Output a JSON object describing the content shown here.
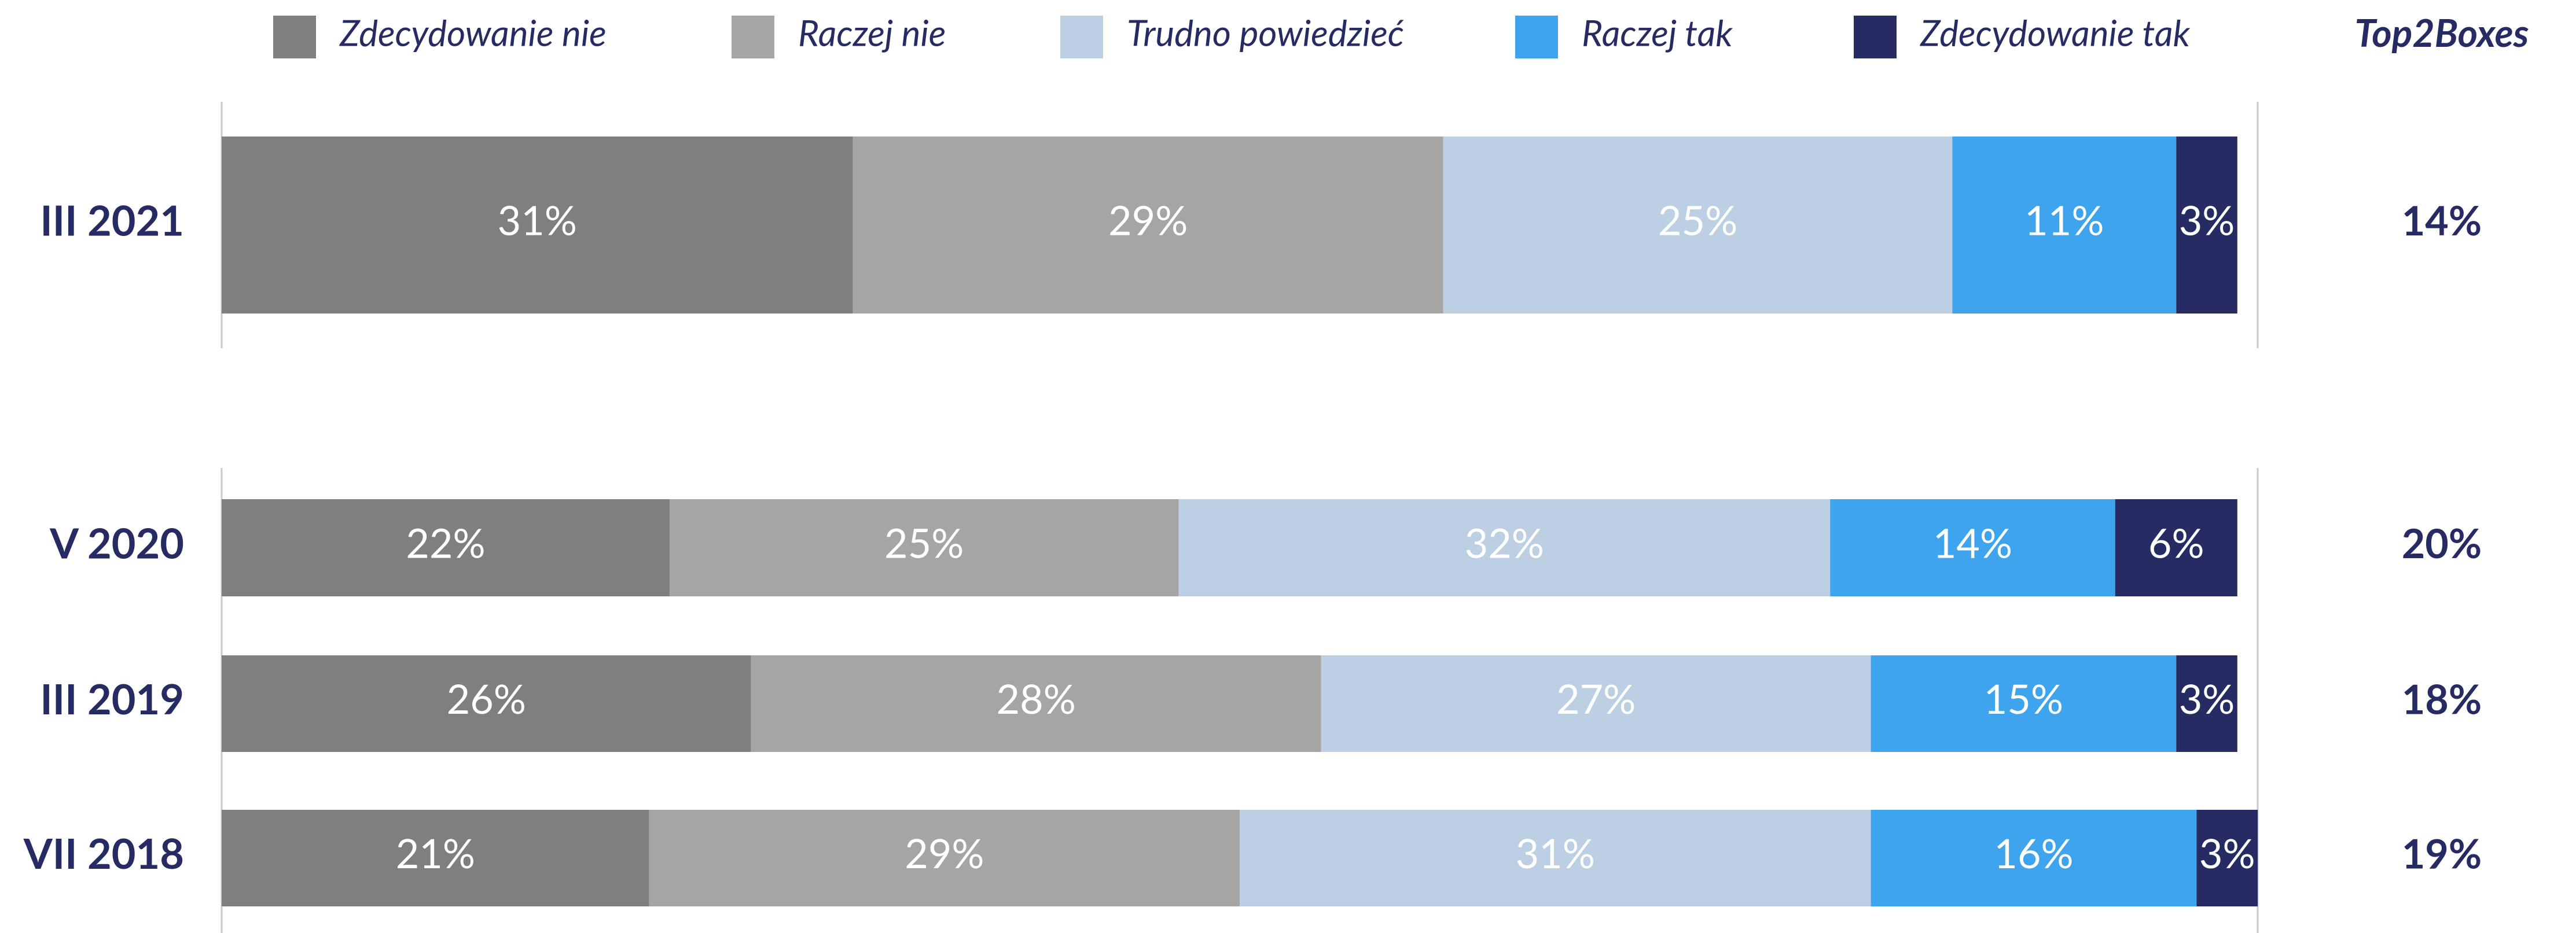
{
  "chart_data": {
    "type": "stacked_bar",
    "orientation": "horizontal",
    "categories": [
      "III 2021",
      "V 2020",
      "III 2019",
      "VII 2018"
    ],
    "xlim": [
      0,
      100
    ],
    "legend": "top",
    "series": [
      {
        "name": "Zdecydowanie nie",
        "color": "#7f7f7f",
        "values": [
          31,
          22,
          26,
          21
        ],
        "value_labels": [
          "31%",
          "22%",
          "26%",
          "21%"
        ]
      },
      {
        "name": "Raczej nie",
        "color": "#a5a5a5",
        "values": [
          29,
          25,
          28,
          29
        ],
        "value_labels": [
          "29%",
          "25%",
          "28%",
          "29%"
        ]
      },
      {
        "name": "Trudno powiedzieć",
        "color": "#bccfe3",
        "values": [
          25,
          32,
          27,
          31
        ],
        "value_labels": [
          "25%",
          "32%",
          "27%",
          "31%"
        ]
      },
      {
        "name": "Raczej tak",
        "color": "#3fa4ee",
        "values": [
          11,
          14,
          15,
          16
        ],
        "value_labels": [
          "11%",
          "14%",
          "15%",
          "16%"
        ]
      },
      {
        "name": "Zdecydowanie tak",
        "color": "#262c63",
        "values": [
          3,
          6,
          3,
          3
        ],
        "value_labels": [
          "3%",
          "6%",
          "3%",
          "3%"
        ]
      }
    ],
    "top2boxes": {
      "title": "Top2Boxes",
      "values": [
        14,
        20,
        18,
        19
      ],
      "value_labels": [
        "14%",
        "20%",
        "18%",
        "19%"
      ]
    }
  }
}
